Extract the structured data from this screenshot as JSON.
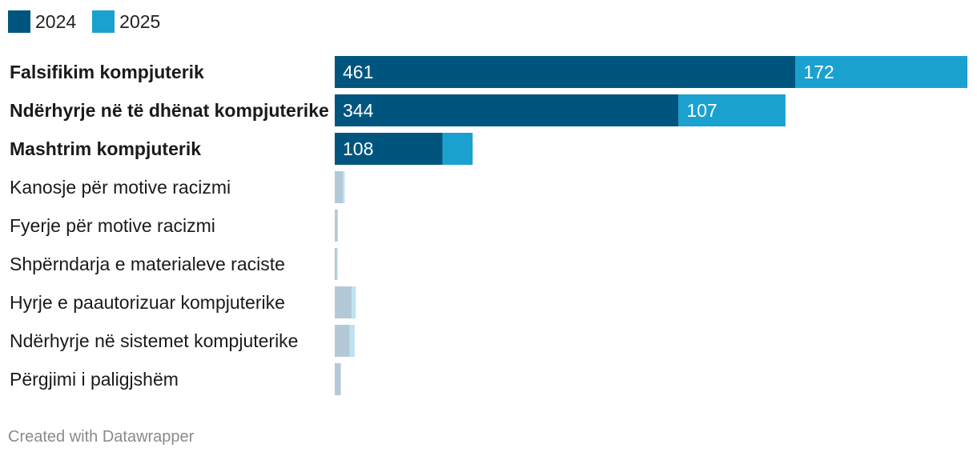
{
  "legend": [
    {
      "label": "2024",
      "color": "#00557f"
    },
    {
      "label": "2025",
      "color": "#1aa1d0"
    }
  ],
  "chart_data": {
    "type": "bar",
    "orientation": "horizontal",
    "stacked": true,
    "categories": [
      "Falsifikim kompjuterik",
      "Ndërhyrje në të dhënat kompjuterike",
      "Mashtrim kompjuterik",
      "Kanosje për motive racizmi",
      "Fyerje për motive racizmi",
      "Shpërndarja e materialeve raciste",
      "Hyrje e paautorizuar kompjuterike",
      "Ndërhyrje në sistemet kompjuterike",
      "Përgjimi i paligjshëm"
    ],
    "highlighted": [
      true,
      true,
      true,
      false,
      false,
      false,
      false,
      false,
      false
    ],
    "series": [
      {
        "name": "2024",
        "values": [
          461,
          344,
          108,
          8,
          3,
          2,
          17,
          15,
          6
        ],
        "labels": [
          "461",
          "344",
          "108",
          "",
          "",
          "",
          "",
          "",
          ""
        ]
      },
      {
        "name": "2025",
        "values": [
          172,
          107,
          30,
          2,
          0,
          1,
          4,
          5,
          0
        ],
        "labels": [
          "172",
          "107",
          "",
          "",
          "",
          "",
          "",
          "",
          ""
        ]
      }
    ],
    "colors": {
      "2024": "#00557f",
      "2025": "#1aa1d0",
      "2024_muted": "#b3c9d8",
      "2025_muted": "#bde3f2"
    },
    "xlim": [
      0,
      633
    ]
  },
  "footer": "Created with Datawrapper"
}
